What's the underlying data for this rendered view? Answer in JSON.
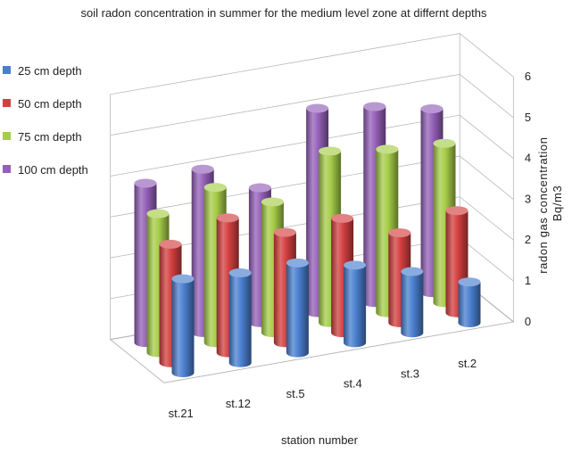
{
  "chart_data": {
    "type": "bar",
    "subtype": "3d-column",
    "title": "soil radon concentration in summer for the medium level zone at differnt depths",
    "xlabel": "station number",
    "ylabel_lines": [
      "radon  gas concentration",
      "Bq/m3"
    ],
    "categories": [
      "st.21",
      "st.12",
      "st.5",
      "st.4",
      "st.3",
      "st.2"
    ],
    "ylim": [
      0,
      6
    ],
    "yticks": [
      "0",
      "1",
      "2",
      "3",
      "4",
      "5",
      "6"
    ],
    "legend_position": "left",
    "series": [
      {
        "name": "25 cm depth",
        "color": "#4a7fd0",
        "values": [
          2.3,
          2.2,
          2.2,
          1.9,
          1.5,
          1.0
        ]
      },
      {
        "name": "50 cm depth",
        "color": "#d33f3f",
        "values": [
          2.9,
          3.3,
          2.7,
          2.8,
          2.2,
          2.5
        ]
      },
      {
        "name": "75 cm depth",
        "color": "#a6cc48",
        "values": [
          3.4,
          3.8,
          3.2,
          4.2,
          4.0,
          3.9
        ]
      },
      {
        "name": "100 cm depth",
        "color": "#9460b8",
        "values": [
          3.9,
          4.0,
          3.3,
          5.0,
          4.8,
          4.5
        ]
      }
    ]
  }
}
